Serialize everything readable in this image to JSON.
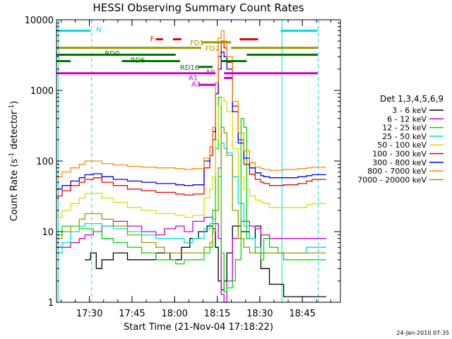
{
  "chart_data": {
    "type": "line",
    "title": "HESSI Observing Summary Count Rates",
    "xlabel": "Start Time (21-Nov-04 17:18:22)",
    "ylabel_main": "Count Rate (s",
    "ylabel_sup": "-1",
    "ylabel_mid": " detector",
    "ylabel_sup2": "-1",
    "ylabel_end": ")",
    "yscale": "log",
    "ylim": [
      1,
      10000
    ],
    "xlim_minutes": [
      0,
      100
    ],
    "x_ticks": [
      {
        "label": "17:30",
        "m": 11.6
      },
      {
        "label": "17:45",
        "m": 26.6
      },
      {
        "label": "18:00",
        "m": 41.6
      },
      {
        "label": "18:15",
        "m": 56.6
      },
      {
        "label": "18:30",
        "m": 71.6
      },
      {
        "label": "18:45",
        "m": 86.6
      }
    ],
    "y_ticks": [
      {
        "label": "1",
        "v": 1
      },
      {
        "label": "10",
        "v": 10
      },
      {
        "label": "100",
        "v": 100
      },
      {
        "label": "1000",
        "v": 1000
      },
      {
        "label": "10000",
        "v": 10000
      }
    ],
    "legend_title": "Det 1,3,4,5,6,9",
    "legend_position": "right",
    "series": [
      {
        "name": "3 - 6 keV",
        "color": "#000000",
        "x": [
          10,
          12,
          14,
          16,
          20,
          25,
          30,
          35,
          40,
          44,
          47,
          50,
          53,
          55,
          56,
          57,
          58,
          59,
          60,
          62,
          65,
          68,
          70,
          72,
          75,
          80
        ],
        "y": [
          4,
          5,
          3,
          4,
          5,
          4,
          4,
          5,
          4,
          6,
          8,
          10,
          12,
          11,
          6,
          2,
          1.5,
          2,
          5,
          12,
          10,
          8,
          12,
          3,
          1.8,
          1.2
        ]
      },
      {
        "name": "6 - 12 keV",
        "color": "#cc00cc",
        "x": [
          0,
          2,
          5,
          8,
          10,
          13,
          16,
          20,
          25,
          30,
          35,
          38,
          42,
          45,
          48,
          52,
          55,
          57,
          58,
          59,
          60,
          62,
          65,
          68,
          70,
          72,
          75,
          80,
          85,
          87,
          90,
          95
        ],
        "y": [
          6,
          6,
          7,
          8,
          9,
          10,
          12,
          14,
          12,
          10,
          9,
          11,
          12,
          10,
          14,
          16,
          13,
          8,
          1.3,
          1,
          2,
          8,
          14,
          12,
          11,
          9,
          8,
          8,
          8,
          8,
          8,
          8
        ]
      },
      {
        "name": "12 - 25 keV",
        "color": "#00dd00",
        "x": [
          0,
          2,
          5,
          8,
          10,
          13,
          16,
          20,
          25,
          30,
          35,
          38,
          42,
          45,
          48,
          52,
          54,
          55,
          56,
          57,
          58,
          59,
          60,
          62,
          63,
          65,
          66,
          67,
          70,
          72,
          73,
          75,
          78,
          80,
          85,
          90,
          95
        ],
        "y": [
          9,
          12,
          12,
          11,
          11,
          10,
          8,
          7,
          6,
          5,
          4,
          4,
          3.5,
          4,
          4,
          5,
          6,
          20,
          150,
          800,
          5,
          1.4,
          1.6,
          2,
          4,
          400,
          300,
          8,
          5,
          4,
          8,
          6,
          5,
          4,
          4,
          4,
          4
        ]
      },
      {
        "name": "25 - 50 keV",
        "color": "#00dddd",
        "x": [
          0,
          2,
          5,
          8,
          10,
          13,
          16,
          20,
          25,
          30,
          35,
          38,
          42,
          45,
          48,
          52,
          54,
          55,
          56,
          57,
          58,
          59,
          60,
          62,
          64,
          66,
          68,
          70,
          72,
          73,
          75,
          78,
          80,
          85,
          88,
          90,
          95
        ],
        "y": [
          5,
          7,
          10,
          12,
          13,
          13,
          12,
          11,
          10,
          9,
          8,
          8,
          8,
          7,
          8,
          11,
          13,
          15,
          20,
          60,
          180,
          150,
          130,
          60,
          25,
          12,
          8,
          6,
          5,
          5,
          5,
          5,
          5,
          5,
          6,
          6,
          6
        ]
      },
      {
        "name": "50 - 100 keV",
        "color": "#dddd00",
        "x": [
          0,
          2,
          5,
          8,
          10,
          13,
          16,
          20,
          25,
          30,
          35,
          38,
          42,
          45,
          48,
          52,
          54,
          55,
          56,
          57,
          58,
          59,
          60,
          62,
          64,
          66,
          68,
          70,
          72,
          73,
          75,
          78,
          80,
          85,
          88,
          90,
          95
        ],
        "y": [
          16,
          20,
          25,
          30,
          35,
          35,
          30,
          26,
          22,
          20,
          18,
          18,
          17,
          16,
          17,
          30,
          40,
          60,
          200,
          600,
          800,
          700,
          500,
          150,
          60,
          40,
          32,
          28,
          26,
          25,
          22,
          22,
          22,
          22,
          24,
          25,
          25
        ]
      },
      {
        "name": "100 - 300 keV",
        "color": "#ee0000",
        "x": [
          0,
          2,
          5,
          8,
          10,
          13,
          16,
          20,
          25,
          30,
          35,
          38,
          42,
          45,
          48,
          52,
          54,
          55,
          56,
          57,
          58,
          59,
          60,
          62,
          64,
          66,
          68,
          70,
          72,
          73,
          75,
          78,
          80,
          85,
          88,
          90,
          95
        ],
        "y": [
          32,
          38,
          45,
          50,
          55,
          58,
          50,
          45,
          40,
          38,
          36,
          36,
          34,
          33,
          34,
          80,
          120,
          200,
          900,
          3000,
          5000,
          4000,
          2500,
          600,
          200,
          90,
          65,
          55,
          50,
          48,
          45,
          45,
          46,
          48,
          52,
          55,
          55
        ]
      },
      {
        "name": "300 - 800 keV",
        "color": "#0000ee",
        "x": [
          0,
          2,
          5,
          8,
          10,
          13,
          16,
          20,
          25,
          30,
          35,
          38,
          42,
          45,
          48,
          52,
          54,
          55,
          56,
          57,
          58,
          59,
          60,
          62,
          64,
          66,
          68,
          70,
          72,
          73,
          75,
          78,
          80,
          85,
          88,
          90,
          95
        ],
        "y": [
          40,
          45,
          52,
          58,
          64,
          66,
          60,
          55,
          52,
          50,
          48,
          48,
          46,
          45,
          46,
          100,
          160,
          260,
          900,
          2000,
          3500,
          3000,
          2000,
          500,
          180,
          110,
          80,
          68,
          62,
          60,
          58,
          58,
          58,
          60,
          62,
          64,
          64
        ]
      },
      {
        "name": "800 - 7000 keV",
        "color": "#ff8800",
        "x": [
          0,
          2,
          5,
          8,
          10,
          13,
          16,
          20,
          25,
          30,
          35,
          38,
          42,
          45,
          48,
          52,
          54,
          55,
          56,
          57,
          58,
          59,
          60,
          62,
          64,
          66,
          68,
          70,
          72,
          73,
          75,
          78,
          80,
          85,
          88,
          90,
          95
        ],
        "y": [
          60,
          70,
          80,
          90,
          100,
          100,
          92,
          88,
          84,
          82,
          80,
          80,
          78,
          76,
          78,
          110,
          160,
          300,
          1300,
          5500,
          7000,
          5000,
          3000,
          700,
          250,
          140,
          95,
          82,
          78,
          76,
          74,
          74,
          76,
          78,
          80,
          82,
          82
        ]
      },
      {
        "name": "7000 - 20000 keV",
        "color": "#999900",
        "x": [
          0,
          2,
          5,
          8,
          10,
          13,
          16,
          20,
          25,
          30,
          35,
          38,
          42,
          45,
          48,
          52,
          54,
          55,
          56,
          57,
          58,
          59,
          60,
          62,
          64,
          66,
          68,
          70,
          72,
          73,
          75,
          78,
          80,
          85,
          88,
          90,
          95
        ],
        "y": [
          8,
          10,
          12,
          15,
          18,
          18,
          15,
          12,
          9,
          7,
          6,
          5,
          5,
          5,
          5,
          6,
          7,
          10,
          20,
          80,
          300,
          250,
          120,
          20,
          8,
          6,
          5,
          5,
          5,
          5,
          5,
          5,
          5,
          5,
          5,
          5,
          5
        ]
      }
    ],
    "state_bars": [
      {
        "label": "N",
        "color": "#00dddd",
        "segments": [
          [
            0,
            12
          ],
          [
            79,
            92
          ]
        ],
        "v": 7000,
        "label_m": 14,
        "label_v": 7200
      },
      {
        "label": "F",
        "color": "#ee0000",
        "segments": [
          [
            35,
            37.5
          ],
          [
            41,
            44
          ],
          [
            64.5,
            71
          ]
        ],
        "v": 5300,
        "label_m": 33,
        "label_v": 5300
      },
      {
        "label": "FD1",
        "color": "#999900",
        "segments": [
          [
            0,
            51
          ],
          [
            61.5,
            92
          ]
        ],
        "v": 4000,
        "label_m": 47,
        "label_v": 4700
      },
      {
        "label": "FD2",
        "color": "#999900",
        "segments": [
          [
            51,
            61.5
          ]
        ],
        "v": 4800,
        "label_m": 52.5,
        "label_v": 3900
      },
      {
        "label": "RD0",
        "color": "#007700",
        "segments": [
          [
            0,
            42
          ],
          [
            67,
            92
          ]
        ],
        "v": 3200,
        "label_m": 17,
        "label_v": 3300
      },
      {
        "label": "RD6",
        "color": "#007700",
        "segments": [
          [
            0,
            5
          ],
          [
            23,
            43.5
          ],
          [
            58,
            67
          ]
        ],
        "v": 2600,
        "label_m": 26,
        "label_v": 2650
      },
      {
        "label": "RD16",
        "color": "#007700",
        "segments": [
          [
            50,
            55
          ]
        ],
        "v": 2150,
        "label_m": 43.5,
        "label_v": 2100
      },
      {
        "label": "A0",
        "color": "#cc00cc",
        "segments": [
          [
            0,
            56
          ],
          [
            59,
            92
          ]
        ],
        "v": 1750,
        "label_m": 52.5,
        "label_v": 1800
      },
      {
        "label": "A1",
        "color": "#cc00cc",
        "segments": [
          [
            59,
            62
          ]
        ],
        "v": 1500,
        "label_m": 46.5,
        "label_v": 1500
      },
      {
        "label": "A3",
        "color": "#cc00cc",
        "segments": [
          [
            50,
            56
          ]
        ],
        "v": 1200,
        "label_m": 47.5,
        "label_v": 1220
      }
    ],
    "vlines": [
      {
        "m": 0.6,
        "color": "#00dddd",
        "dashed": false
      },
      {
        "m": 12.4,
        "color": "#00dddd",
        "dashed": true
      },
      {
        "m": 79.4,
        "color": "#00dddd",
        "dashed": false
      },
      {
        "m": 92.2,
        "color": "#00dddd",
        "dashed": true
      }
    ],
    "footer_date": "24-Jan-2010 07:35"
  }
}
